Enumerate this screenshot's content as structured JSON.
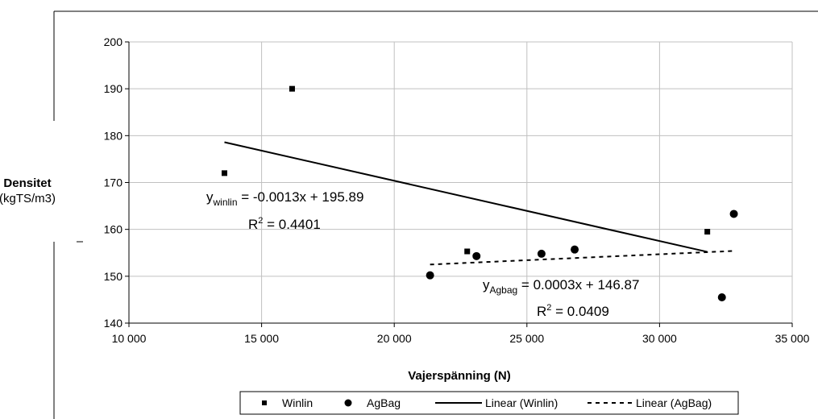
{
  "chart_data": {
    "type": "scatter",
    "xlabel": "Vajerspänning (N)",
    "ylabel": "Densitet",
    "ylabel_unit": "(kgTS/m3)",
    "xlim": [
      10000,
      35000
    ],
    "ylim": [
      140,
      200
    ],
    "x_ticks": [
      "10 000",
      "15 000",
      "20 000",
      "25 000",
      "30 000",
      "35 000"
    ],
    "y_ticks": [
      "140",
      "150",
      "160",
      "170",
      "180",
      "190",
      "200"
    ],
    "grid": "horizontal",
    "legend_position": "bottom",
    "series": [
      {
        "name": "Winlin",
        "marker": "square",
        "points": [
          {
            "x": 13600,
            "y": 172.0
          },
          {
            "x": 16150,
            "y": 190.0
          },
          {
            "x": 22750,
            "y": 155.3
          },
          {
            "x": 31800,
            "y": 159.5
          }
        ]
      },
      {
        "name": "AgBag",
        "marker": "circle",
        "points": [
          {
            "x": 21350,
            "y": 150.2
          },
          {
            "x": 23100,
            "y": 154.3
          },
          {
            "x": 25550,
            "y": 154.8
          },
          {
            "x": 26800,
            "y": 155.7
          },
          {
            "x": 32350,
            "y": 145.5
          },
          {
            "x": 32800,
            "y": 163.3
          }
        ]
      }
    ],
    "trendlines": [
      {
        "name": "Linear (Winlin)",
        "style": "solid",
        "x": [
          13600,
          31800
        ],
        "y": [
          178.6,
          155.2
        ]
      },
      {
        "name": "Linear (AgBag)",
        "style": "dashed",
        "x": [
          21350,
          32800
        ],
        "y": [
          152.5,
          155.4
        ]
      }
    ],
    "annotations": {
      "winlin_eq_y": "y",
      "winlin_eq_sub": "winlin",
      "winlin_eq_rest": " = -0.0013x + 195.89",
      "winlin_r2_pre": "R",
      "winlin_r2_sup": "2",
      "winlin_r2_rest": " = 0.4401",
      "agbag_eq_y": "y",
      "agbag_eq_sub": "Agbag",
      "agbag_eq_rest": " = 0.0003x + 146.87",
      "agbag_r2_pre": "R",
      "agbag_r2_sup": "2",
      "agbag_r2_rest": " = 0.0409"
    },
    "legend": [
      "Winlin",
      "AgBag",
      "Linear (Winlin)",
      "Linear (AgBag)"
    ]
  },
  "colors": {
    "marks": "#000000",
    "grid": "#c0c0c0"
  }
}
